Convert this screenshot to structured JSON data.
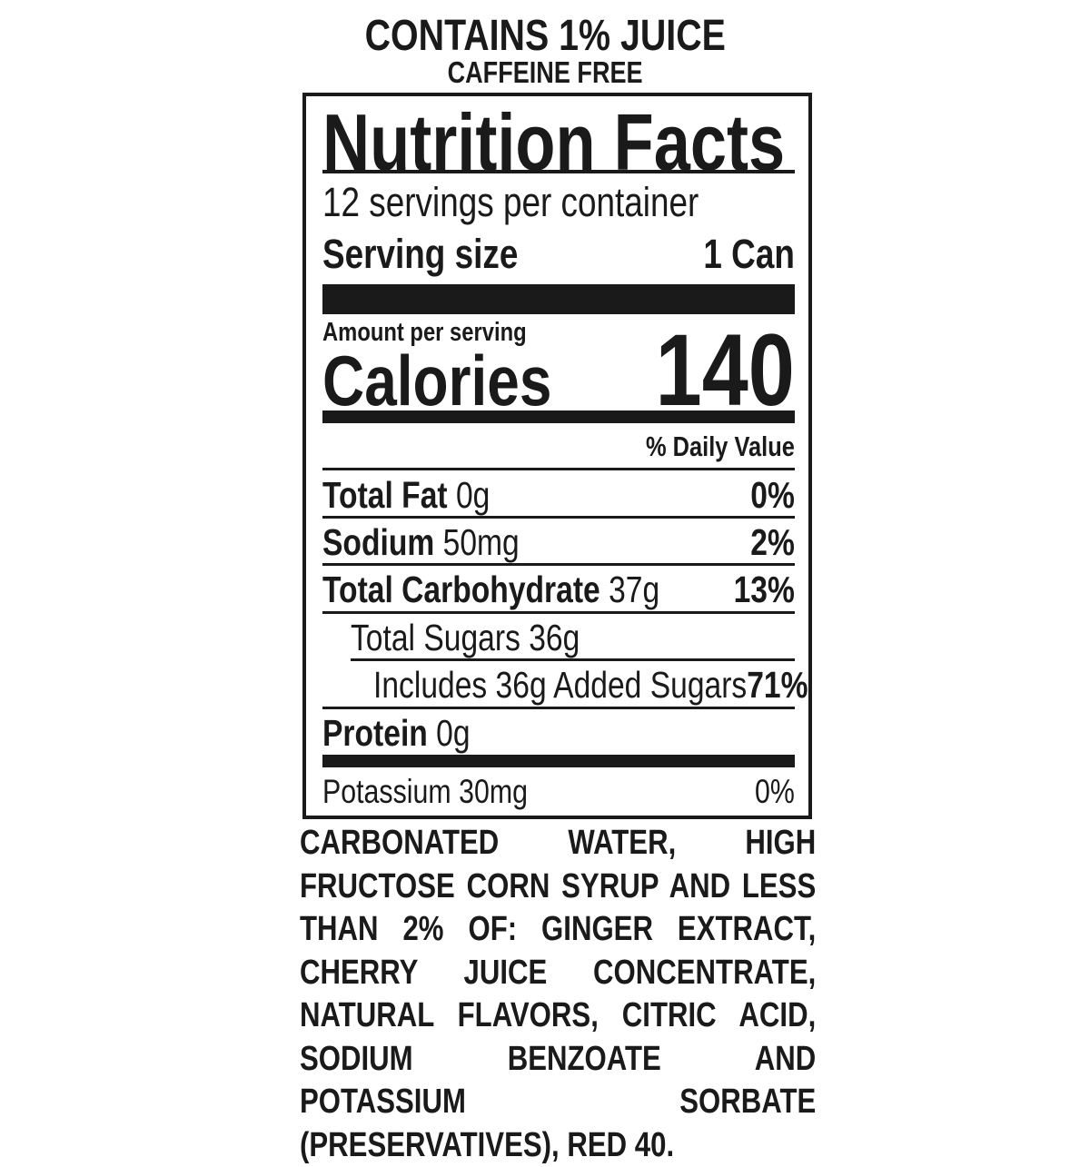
{
  "header": {
    "juice": "CONTAINS 1% JUICE",
    "caffeine": "CAFFEINE FREE"
  },
  "label": {
    "title": "Nutrition Facts",
    "servings": "12 servings per container",
    "serving_size_label": "Serving size",
    "serving_size_value": "1 Can",
    "amount_per_serving": "Amount per serving",
    "calories_label": "Calories",
    "calories_value": "140",
    "daily_value_header": "% Daily Value",
    "nutrients": [
      {
        "name": "Total Fat",
        "amount": "0g",
        "dv": "0%"
      },
      {
        "name": "Sodium",
        "amount": "50mg",
        "dv": "2%"
      },
      {
        "name": "Total Carbohydrate",
        "amount": "37g",
        "dv": "13%"
      },
      {
        "name": "Total Sugars 36g",
        "amount": "",
        "dv": ""
      },
      {
        "name": "Includes 36g Added Sugars",
        "amount": "",
        "dv": "71%"
      },
      {
        "name": "Protein",
        "amount": "0g",
        "dv": ""
      },
      {
        "name": "Potassium 30mg",
        "amount": "",
        "dv": "0%"
      }
    ]
  },
  "ingredients": "CARBONATED WATER, HIGH FRUCTOSE CORN SYRUP AND LESS THAN 2% OF: GINGER EXTRACT, CHERRY JUICE CONCENTRATE, NATURAL FLAVORS, CITRIC ACID, SODIUM BENZOATE AND POTASSIUM SORBATE (PRESERVATIVES), RED 40."
}
